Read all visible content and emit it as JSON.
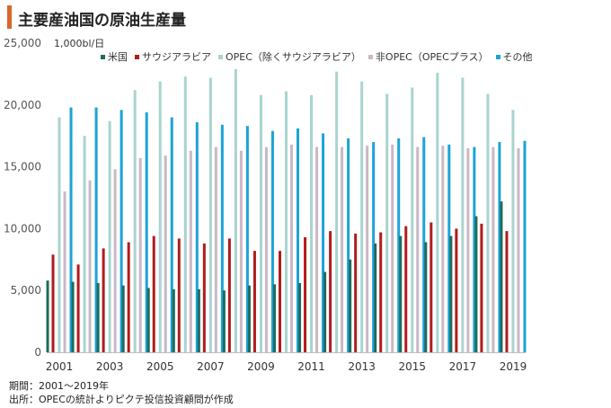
{
  "title": "主要産油国の原油生産量",
  "unit_label": "1,000bl/日",
  "notes": {
    "period": "期間：2001～2019年",
    "source": "出所：OPECの統計よりピクテ投信投資顧問が作成"
  },
  "chart_data": {
    "type": "bar",
    "title": "主要産油国の原油生産量",
    "ylabel": "1,000bl/日",
    "xlabel": "",
    "ylim": [
      0,
      25000
    ],
    "yticks": [
      "0",
      "5,000",
      "10,000",
      "15,000",
      "20,000",
      "25,000"
    ],
    "ytick_values": [
      0,
      5000,
      10000,
      15000,
      20000,
      25000
    ],
    "grid": false,
    "legend_position": "top",
    "categories": [
      "2001",
      "2002",
      "2003",
      "2004",
      "2005",
      "2006",
      "2007",
      "2008",
      "2009",
      "2010",
      "2011",
      "2012",
      "2013",
      "2014",
      "2015",
      "2016",
      "2017",
      "2018",
      "2019"
    ],
    "xtick_labels": [
      "2001",
      "",
      "2003",
      "",
      "2005",
      "",
      "2007",
      "",
      "2009",
      "",
      "2011",
      "",
      "2013",
      "",
      "2015",
      "",
      "2017",
      "",
      "2019"
    ],
    "series": [
      {
        "name": "米国",
        "color": "#1f6b5e",
        "values": [
          5800,
          5700,
          5600,
          5400,
          5200,
          5100,
          5100,
          5000,
          5400,
          5500,
          5600,
          6500,
          7500,
          8800,
          9400,
          8900,
          9400,
          11000,
          12200
        ]
      },
      {
        "name": "サウジアラビア",
        "color": "#b01c1c",
        "values": [
          7900,
          7100,
          8400,
          8900,
          9400,
          9200,
          8800,
          9200,
          8200,
          8200,
          9300,
          9800,
          9600,
          9700,
          10200,
          10500,
          10000,
          10400,
          9800
        ]
      },
      {
        "name": "OPEC（除くサウジアラビア）",
        "color": "#a9d4cf",
        "values": [
          19000,
          17500,
          18700,
          21200,
          21900,
          22300,
          22200,
          22900,
          20800,
          21100,
          20800,
          22700,
          21900,
          20900,
          21400,
          22600,
          22200,
          20900,
          19600
        ]
      },
      {
        "name": "非OPEC（OPECプラス）",
        "color": "#c9b8c6",
        "values": [
          13000,
          13900,
          14800,
          15700,
          15900,
          16300,
          16600,
          16300,
          16600,
          16800,
          16600,
          16600,
          16700,
          16800,
          16600,
          16700,
          16500,
          16600,
          16500
        ]
      },
      {
        "name": "その他",
        "color": "#1ba3d8",
        "values": [
          19800,
          19800,
          19600,
          19400,
          19000,
          18600,
          18400,
          18300,
          17900,
          18100,
          17700,
          17300,
          17000,
          17300,
          17400,
          16800,
          16600,
          17000,
          17100
        ]
      }
    ]
  }
}
